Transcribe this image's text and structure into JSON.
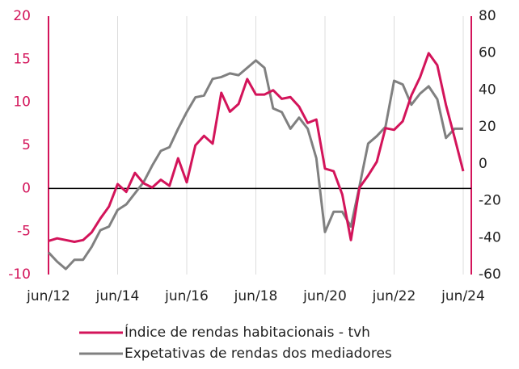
{
  "chart_data": {
    "type": "line",
    "categories": [
      "jun/12",
      null,
      null,
      null,
      null,
      null,
      null,
      null,
      "jun/14",
      null,
      null,
      null,
      null,
      null,
      null,
      null,
      "jun/16",
      null,
      null,
      null,
      null,
      null,
      null,
      null,
      "jun/18",
      null,
      null,
      null,
      null,
      null,
      null,
      null,
      "jun/20",
      null,
      null,
      null,
      null,
      null,
      null,
      null,
      "jun/22",
      null,
      null,
      null,
      null,
      null,
      null,
      null,
      "jun/24"
    ],
    "series": [
      {
        "name": "Índice de rendas habitacionais - tvh",
        "color": "#d3145a",
        "values": [
          -6.1,
          -5.8,
          -6.0,
          -6.2,
          -6.0,
          -5.1,
          -3.5,
          -2.1,
          0.5,
          -0.4,
          1.8,
          0.6,
          0.1,
          1.0,
          0.3,
          3.5,
          0.7,
          5.0,
          6.1,
          5.2,
          11.1,
          8.9,
          9.8,
          12.7,
          10.9,
          10.9,
          11.4,
          10.4,
          10.6,
          9.5,
          7.6,
          8.0,
          2.3,
          2.0,
          -0.7,
          -6.0,
          0.1,
          1.5,
          3.1,
          7.0,
          6.8,
          7.8,
          10.8,
          12.9,
          15.7,
          14.3,
          9.7,
          5.9,
          2.0
        ]
      },
      {
        "name": "Expetativas de rendas dos mediadores",
        "color": "#808080",
        "axis": "y2",
        "values": [
          -48,
          -53,
          -57,
          -52,
          -52,
          -45,
          -36,
          -34,
          -25,
          -22,
          -16,
          -10,
          -1,
          7,
          9,
          19,
          28,
          36,
          37,
          46,
          47,
          49,
          48,
          52,
          56,
          52,
          30,
          28,
          19,
          25,
          19,
          3,
          -37,
          -26,
          -26,
          -34,
          -12,
          11,
          15,
          20,
          45,
          43,
          32,
          38,
          42,
          35,
          14,
          19,
          19
        ]
      }
    ],
    "ylim": [
      -10,
      20
    ],
    "yticks": [
      -10,
      -5,
      0,
      5,
      10,
      15,
      20
    ],
    "y2lim": [
      -60,
      80
    ],
    "y2ticks": [
      -60,
      -40,
      -20,
      0,
      20,
      40,
      60,
      80
    ],
    "axis_color": "#d3145a",
    "grid": true
  }
}
